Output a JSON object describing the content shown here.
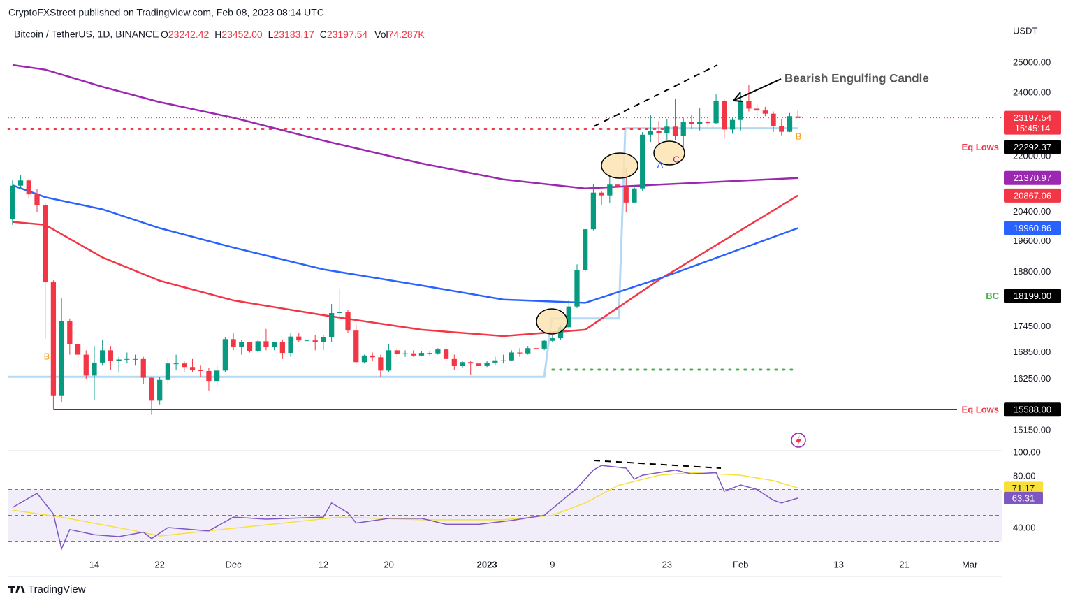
{
  "chart_data": {
    "type": "candlestick",
    "publisher": "CryptoFXStreet published on TradingView.com, Feb 08, 2023 08:14 UTC",
    "title": "Bitcoin / TetherUS, 1D, BINANCE",
    "ohlc": [
      {
        "label": "O",
        "value": "23242.42"
      },
      {
        "label": "H",
        "value": "23452.00"
      },
      {
        "label": "L",
        "value": "23183.17"
      },
      {
        "label": "C",
        "value": "23197.54"
      }
    ],
    "volume": {
      "label": "Vol",
      "value": "74.287K"
    },
    "currency": "USDT",
    "brand": "TradingView",
    "log": true,
    "xlim": [
      -0.5,
      121
    ],
    "ylim": [
      14740,
      26470
    ],
    "xticks": [
      {
        "value": 10,
        "label": "14"
      },
      {
        "value": 18,
        "label": "22"
      },
      {
        "value": 27,
        "label": "Dec"
      },
      {
        "value": 38,
        "label": "12"
      },
      {
        "value": 46,
        "label": "20"
      },
      {
        "value": 58,
        "label": "2023",
        "bold": true
      },
      {
        "value": 66,
        "label": "9"
      },
      {
        "value": 80,
        "label": "23"
      },
      {
        "value": 89,
        "label": "Feb"
      },
      {
        "value": 101,
        "label": "13"
      },
      {
        "value": 109,
        "label": "21"
      },
      {
        "value": 117,
        "label": "Mar"
      }
    ],
    "yticks": [
      {
        "value": 25000,
        "label": "25000.00"
      },
      {
        "value": 24000,
        "label": "24000.00"
      },
      {
        "value": 22000,
        "label": "22000.00"
      },
      {
        "value": 20400,
        "label": "20400.00"
      },
      {
        "value": 19600,
        "label": "19600.00"
      },
      {
        "value": 18800,
        "label": "18800.00"
      },
      {
        "value": 17450,
        "label": "17450.00"
      },
      {
        "value": 16850,
        "label": "16850.00"
      },
      {
        "value": 16250,
        "label": "16250.00"
      },
      {
        "value": 15150,
        "label": "15150.00"
      }
    ],
    "up_color": "#089981",
    "down_color": "#f23645",
    "candles": [
      [
        20200,
        21300,
        20050,
        21150
      ],
      [
        21150,
        21450,
        21050,
        21300
      ],
      [
        21300,
        21350,
        20800,
        20900
      ],
      [
        20900,
        21050,
        20400,
        20600
      ],
      [
        20600,
        20650,
        17166,
        18540
      ],
      [
        18540,
        18590,
        15588,
        15880
      ],
      [
        15880,
        18150,
        15750,
        17590
      ],
      [
        17590,
        17650,
        16800,
        17040
      ],
      [
        17040,
        17100,
        16400,
        16800
      ],
      [
        16800,
        16900,
        16250,
        16330
      ],
      [
        16330,
        17000,
        15800,
        16620
      ],
      [
        16620,
        17150,
        16550,
        16900
      ],
      [
        16900,
        17000,
        16450,
        16660
      ],
      [
        16660,
        16750,
        16400,
        16690
      ],
      [
        16690,
        16850,
        16600,
        16700
      ],
      [
        16700,
        16800,
        16550,
        16700
      ],
      [
        16700,
        16750,
        16150,
        16280
      ],
      [
        16280,
        16300,
        15480,
        15780
      ],
      [
        15780,
        16300,
        15700,
        16230
      ],
      [
        16230,
        16700,
        16150,
        16600
      ],
      [
        16600,
        16800,
        16450,
        16600
      ],
      [
        16600,
        16650,
        16400,
        16520
      ],
      [
        16520,
        16700,
        16400,
        16460
      ],
      [
        16460,
        16550,
        16300,
        16430
      ],
      [
        16430,
        16500,
        16000,
        16210
      ],
      [
        16210,
        16550,
        16100,
        16440
      ],
      [
        16440,
        17200,
        16400,
        17160
      ],
      [
        17160,
        17300,
        16900,
        16980
      ],
      [
        16980,
        17150,
        16800,
        17090
      ],
      [
        17090,
        17100,
        16850,
        16890
      ],
      [
        16890,
        17150,
        16850,
        17110
      ],
      [
        17110,
        17400,
        16900,
        16970
      ],
      [
        16970,
        17100,
        16900,
        17090
      ],
      [
        17090,
        17150,
        16700,
        16840
      ],
      [
        16840,
        17300,
        16750,
        17220
      ],
      [
        17220,
        17300,
        17100,
        17130
      ],
      [
        17130,
        17200,
        17100,
        17130
      ],
      [
        17130,
        17250,
        16900,
        17090
      ],
      [
        17090,
        17250,
        16900,
        17210
      ],
      [
        17210,
        18000,
        17100,
        17780
      ],
      [
        17780,
        18387,
        17650,
        17800
      ],
      [
        17800,
        17850,
        17300,
        17360
      ],
      [
        17360,
        17500,
        16600,
        16630
      ],
      [
        16630,
        16800,
        16600,
        16780
      ],
      [
        16780,
        16850,
        16650,
        16740
      ],
      [
        16740,
        16800,
        16300,
        16440
      ],
      [
        16440,
        17050,
        16400,
        16900
      ],
      [
        16900,
        16950,
        16750,
        16820
      ],
      [
        16820,
        16900,
        16750,
        16830
      ],
      [
        16830,
        16900,
        16750,
        16780
      ],
      [
        16780,
        16880,
        16760,
        16840
      ],
      [
        16840,
        16880,
        16780,
        16830
      ],
      [
        16830,
        16950,
        16800,
        16920
      ],
      [
        16920,
        16980,
        16600,
        16700
      ],
      [
        16700,
        16800,
        16450,
        16540
      ],
      [
        16540,
        16650,
        16500,
        16630
      ],
      [
        16630,
        16650,
        16350,
        16600
      ],
      [
        16600,
        16620,
        16480,
        16540
      ],
      [
        16540,
        16650,
        16520,
        16620
      ],
      [
        16620,
        16750,
        16550,
        16670
      ],
      [
        16670,
        16800,
        16600,
        16670
      ],
      [
        16670,
        16900,
        16650,
        16850
      ],
      [
        16850,
        16950,
        16750,
        16830
      ],
      [
        16830,
        17000,
        16800,
        16950
      ],
      [
        16950,
        16980,
        16900,
        16940
      ],
      [
        16940,
        17150,
        16900,
        17120
      ],
      [
        17120,
        17250,
        17100,
        17180
      ],
      [
        17180,
        17500,
        17150,
        17440
      ],
      [
        17440,
        18100,
        17400,
        17940
      ],
      [
        17940,
        19000,
        17900,
        18850
      ],
      [
        18850,
        19950,
        18800,
        19930
      ],
      [
        19930,
        21200,
        19900,
        20950
      ],
      [
        20950,
        21000,
        20600,
        20870
      ],
      [
        20870,
        21400,
        20650,
        21180
      ],
      [
        21180,
        21450,
        21050,
        21130
      ],
      [
        21130,
        21650,
        20400,
        20670
      ],
      [
        20670,
        21150,
        20650,
        21070
      ],
      [
        21070,
        22750,
        21000,
        22670
      ],
      [
        22670,
        23300,
        22450,
        22780
      ],
      [
        22780,
        23100,
        22300,
        22710
      ],
      [
        22710,
        23150,
        22500,
        22920
      ],
      [
        22920,
        23800,
        22500,
        22630
      ],
      [
        22630,
        23200,
        22300,
        23060
      ],
      [
        23060,
        23300,
        22850,
        23010
      ],
      [
        23010,
        23500,
        22800,
        23080
      ],
      [
        23080,
        23150,
        22900,
        23030
      ],
      [
        23030,
        23950,
        23000,
        23740
      ],
      [
        23740,
        23780,
        22550,
        22830
      ],
      [
        22830,
        23200,
        22700,
        23130
      ],
      [
        23130,
        24000,
        22800,
        23730
      ],
      [
        23730,
        24255,
        23400,
        23490
      ],
      [
        23490,
        23650,
        23250,
        23430
      ],
      [
        23430,
        23550,
        23250,
        23330
      ],
      [
        23330,
        23400,
        22750,
        22930
      ],
      [
        22930,
        23150,
        22650,
        22760
      ],
      [
        22760,
        23350,
        22750,
        23250
      ],
      [
        23242.42,
        23452,
        23183.17,
        23197.54
      ]
    ],
    "countdown": "15:45:14",
    "averages": [
      {
        "color": "#9c27b0",
        "x": [
          0,
          4,
          11,
          18,
          27,
          38,
          50,
          60,
          70,
          79,
          96
        ],
        "values": [
          24930,
          24770,
          24200,
          23700,
          23200,
          22490,
          21800,
          21330,
          21070,
          21180,
          21370.97
        ]
      },
      {
        "color": "#f23645",
        "x": [
          0,
          4,
          11,
          18,
          27,
          38,
          50,
          60,
          70,
          79,
          96
        ],
        "values": [
          20130,
          20050,
          19180,
          18580,
          18090,
          17730,
          17380,
          17230,
          17380,
          18600,
          20867.06
        ]
      },
      {
        "color": "#2962ff",
        "x": [
          0,
          4,
          11,
          18,
          27,
          38,
          50,
          60,
          70,
          79,
          96
        ],
        "values": [
          21160,
          20820,
          20480,
          19960,
          19440,
          18870,
          18460,
          18110,
          18030,
          18630,
          19960.86
        ]
      }
    ],
    "trail": {
      "color": "#b3d9f5",
      "x": [
        -0.5,
        65,
        65.9,
        74.1,
        74.9,
        96
      ],
      "values": [
        16300,
        16300,
        17650,
        17650,
        22870,
        22870
      ]
    },
    "dots": [
      {
        "color": "#f23645",
        "value": 22850,
        "from": -0.5,
        "to": 80
      },
      {
        "color": "#4caf50",
        "value": 16460,
        "from": 66,
        "to": 96
      }
    ],
    "levels": [
      {
        "value": 22292.37,
        "label": "Eq Lows",
        "color": "#f23645",
        "from": 79
      },
      {
        "value": 18199,
        "value_label": "18199.00",
        "label": "BC",
        "color": "#4caf50",
        "from": 6
      },
      {
        "value": 15588,
        "value_label": "15588.00",
        "label": "Eq Lows",
        "color": "#f23645",
        "from": 5
      }
    ],
    "annotations": {
      "pattern": "Bearish Engulfing Candle",
      "a": "A",
      "b1": "B",
      "b2": "B",
      "c": "C"
    },
    "rsi": {
      "ylim": [
        21.6,
        100
      ],
      "yticks": [
        {
          "value": 100,
          "label": "100.00"
        },
        {
          "value": 80,
          "label": "80.00"
        },
        {
          "value": 40,
          "label": "40.00"
        }
      ],
      "levels": [
        70,
        50,
        30
      ],
      "series": [
        {
          "color": "#7e57c2",
          "x": [
            0,
            3,
            5,
            6,
            7,
            10,
            13,
            16,
            17,
            19,
            24,
            27,
            31,
            38,
            39,
            41,
            42,
            46,
            50,
            53,
            57,
            61,
            65,
            67,
            69,
            71,
            72,
            75,
            76,
            77,
            79,
            81,
            83,
            86,
            87,
            89,
            91,
            93,
            94,
            96
          ],
          "values": [
            56,
            67,
            51,
            24,
            39,
            35,
            33.5,
            37,
            32,
            40.5,
            38,
            48.6,
            47,
            48.6,
            59.5,
            52,
            44,
            47.6,
            47.6,
            43,
            43,
            46,
            50,
            60.5,
            71,
            85,
            88.6,
            86.5,
            78,
            81,
            83,
            85,
            82,
            83,
            68.6,
            73.5,
            70,
            61.6,
            59.5,
            63.31
          ]
        },
        {
          "color": "#f7e03b",
          "x": [
            0,
            6,
            15,
            18,
            27,
            40,
            50,
            60,
            66,
            70,
            74,
            79,
            83,
            86,
            89,
            93,
            96
          ],
          "values": [
            54,
            48.6,
            38,
            34,
            40,
            48.6,
            46.5,
            46.5,
            50,
            59.5,
            73,
            81,
            83,
            82,
            81,
            76.8,
            71.17
          ]
        }
      ]
    }
  }
}
